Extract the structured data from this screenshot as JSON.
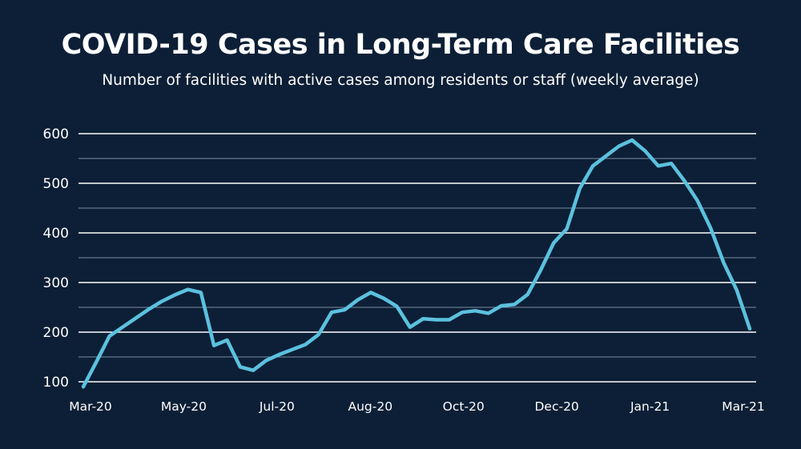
{
  "chart_data": {
    "type": "line",
    "title": "COVID-19 Cases in Long-Term Care Facilities",
    "subtitle": "Number of facilities with active cases among residents or staff (weekly average)",
    "xlabel": "",
    "ylabel": "",
    "ylim": [
      100,
      600
    ],
    "y_ticks": [
      "600",
      "500",
      "400",
      "300",
      "200",
      "100"
    ],
    "y_tick_values": [
      600,
      500,
      400,
      300,
      200,
      100
    ],
    "y_minor_gridlines": [
      150,
      250,
      350,
      450,
      550
    ],
    "x_tick_labels": [
      "Mar-20",
      "May-20",
      "Jul-20",
      "Aug-20",
      "Oct-20",
      "Dec-20",
      "Jan-21",
      "Mar-21"
    ],
    "grid": true,
    "line_color": "#5bc1de",
    "series": [
      {
        "values": [
          90,
          140,
          192,
          210,
          228,
          246,
          262,
          275,
          286,
          280,
          173,
          184,
          130,
          123,
          143,
          155,
          165,
          175,
          195,
          240,
          245,
          265,
          280,
          268,
          252,
          210,
          227,
          225,
          225,
          240,
          243,
          238,
          253,
          256,
          276,
          325,
          380,
          408,
          490,
          535,
          555,
          575,
          587,
          565,
          535,
          540,
          505,
          465,
          410,
          340,
          285,
          207
        ]
      }
    ]
  }
}
